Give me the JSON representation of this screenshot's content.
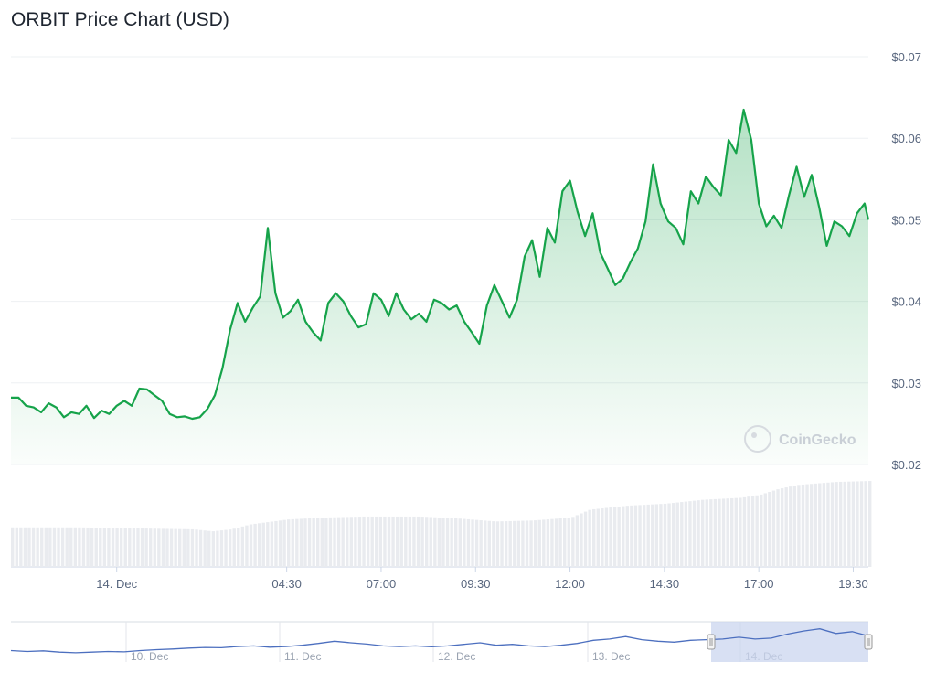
{
  "title": "ORBIT Price Chart (USD)",
  "watermark": "CoinGecko",
  "colors": {
    "line": "#16a34a",
    "area_top": "#16a34a",
    "grid": "#eef0f3",
    "volume": "#e9ebef",
    "navigator_line": "#4c6fbf",
    "navigator_mask": "#cbd5ef"
  },
  "chart_data": {
    "type": "line",
    "ylim": [
      0.02,
      0.07
    ],
    "yticks": [
      {
        "value": 0.07,
        "label": "$0.07"
      },
      {
        "value": 0.06,
        "label": "$0.06"
      },
      {
        "value": 0.05,
        "label": "$0.05"
      },
      {
        "value": 0.04,
        "label": "$0.04"
      },
      {
        "value": 0.03,
        "label": "$0.03"
      },
      {
        "value": 0.02,
        "label": "$0.02"
      }
    ],
    "xlim": [
      -2.8,
      19.9
    ],
    "xticks": [
      {
        "hour": 0,
        "label": "14. Dec"
      },
      {
        "hour": 4.5,
        "label": "04:30"
      },
      {
        "hour": 7,
        "label": "07:00"
      },
      {
        "hour": 9.5,
        "label": "09:30"
      },
      {
        "hour": 12,
        "label": "12:00"
      },
      {
        "hour": 14.5,
        "label": "14:30"
      },
      {
        "hour": 17,
        "label": "17:00"
      },
      {
        "hour": 19.5,
        "label": "19:30"
      }
    ],
    "grid": true,
    "series": [
      {
        "kind": "price",
        "points": [
          [
            -2.8,
            0.0282
          ],
          [
            -2.6,
            0.0282
          ],
          [
            -2.4,
            0.0272
          ],
          [
            -2.2,
            0.027
          ],
          [
            -2.0,
            0.0264
          ],
          [
            -1.8,
            0.0275
          ],
          [
            -1.6,
            0.027
          ],
          [
            -1.4,
            0.0258
          ],
          [
            -1.2,
            0.0264
          ],
          [
            -1.0,
            0.0262
          ],
          [
            -0.8,
            0.0272
          ],
          [
            -0.6,
            0.0257
          ],
          [
            -0.4,
            0.0266
          ],
          [
            -0.2,
            0.0262
          ],
          [
            0.0,
            0.0272
          ],
          [
            0.2,
            0.0278
          ],
          [
            0.4,
            0.0272
          ],
          [
            0.6,
            0.0293
          ],
          [
            0.8,
            0.0292
          ],
          [
            1.0,
            0.0285
          ],
          [
            1.2,
            0.0278
          ],
          [
            1.4,
            0.0262
          ],
          [
            1.6,
            0.0258
          ],
          [
            1.8,
            0.0259
          ],
          [
            2.0,
            0.0256
          ],
          [
            2.2,
            0.0258
          ],
          [
            2.4,
            0.0268
          ],
          [
            2.6,
            0.0285
          ],
          [
            2.8,
            0.0318
          ],
          [
            3.0,
            0.0365
          ],
          [
            3.2,
            0.0398
          ],
          [
            3.4,
            0.0375
          ],
          [
            3.6,
            0.0392
          ],
          [
            3.8,
            0.0406
          ],
          [
            4.0,
            0.049
          ],
          [
            4.2,
            0.041
          ],
          [
            4.4,
            0.038
          ],
          [
            4.6,
            0.0388
          ],
          [
            4.8,
            0.0402
          ],
          [
            5.0,
            0.0375
          ],
          [
            5.2,
            0.0362
          ],
          [
            5.4,
            0.0352
          ],
          [
            5.6,
            0.0398
          ],
          [
            5.8,
            0.041
          ],
          [
            6.0,
            0.04
          ],
          [
            6.2,
            0.0382
          ],
          [
            6.4,
            0.0368
          ],
          [
            6.6,
            0.0372
          ],
          [
            6.8,
            0.041
          ],
          [
            7.0,
            0.0402
          ],
          [
            7.2,
            0.0382
          ],
          [
            7.4,
            0.041
          ],
          [
            7.6,
            0.039
          ],
          [
            7.8,
            0.0378
          ],
          [
            8.0,
            0.0385
          ],
          [
            8.2,
            0.0375
          ],
          [
            8.4,
            0.0402
          ],
          [
            8.6,
            0.0398
          ],
          [
            8.8,
            0.039
          ],
          [
            9.0,
            0.0395
          ],
          [
            9.2,
            0.0375
          ],
          [
            9.4,
            0.0362
          ],
          [
            9.6,
            0.0348
          ],
          [
            9.8,
            0.0395
          ],
          [
            10.0,
            0.042
          ],
          [
            10.2,
            0.04
          ],
          [
            10.4,
            0.038
          ],
          [
            10.6,
            0.0402
          ],
          [
            10.8,
            0.0455
          ],
          [
            11.0,
            0.0475
          ],
          [
            11.2,
            0.043
          ],
          [
            11.4,
            0.049
          ],
          [
            11.6,
            0.0472
          ],
          [
            11.8,
            0.0535
          ],
          [
            12.0,
            0.0548
          ],
          [
            12.2,
            0.051
          ],
          [
            12.4,
            0.048
          ],
          [
            12.6,
            0.0508
          ],
          [
            12.8,
            0.046
          ],
          [
            13.0,
            0.044
          ],
          [
            13.2,
            0.042
          ],
          [
            13.4,
            0.0428
          ],
          [
            13.6,
            0.0448
          ],
          [
            13.8,
            0.0465
          ],
          [
            14.0,
            0.0498
          ],
          [
            14.2,
            0.0568
          ],
          [
            14.4,
            0.052
          ],
          [
            14.6,
            0.0498
          ],
          [
            14.8,
            0.049
          ],
          [
            15.0,
            0.047
          ],
          [
            15.2,
            0.0535
          ],
          [
            15.4,
            0.052
          ],
          [
            15.6,
            0.0553
          ],
          [
            15.8,
            0.054
          ],
          [
            16.0,
            0.053
          ],
          [
            16.2,
            0.0598
          ],
          [
            16.4,
            0.0582
          ],
          [
            16.6,
            0.0635
          ],
          [
            16.8,
            0.0598
          ],
          [
            17.0,
            0.052
          ],
          [
            17.2,
            0.0492
          ],
          [
            17.4,
            0.0505
          ],
          [
            17.6,
            0.049
          ],
          [
            17.8,
            0.053
          ],
          [
            18.0,
            0.0565
          ],
          [
            18.2,
            0.0528
          ],
          [
            18.4,
            0.0555
          ],
          [
            18.6,
            0.0515
          ],
          [
            18.8,
            0.0468
          ],
          [
            19.0,
            0.0498
          ],
          [
            19.2,
            0.0492
          ],
          [
            19.4,
            0.048
          ],
          [
            19.6,
            0.0508
          ],
          [
            19.8,
            0.052
          ],
          [
            19.9,
            0.05
          ]
        ]
      },
      {
        "kind": "volume",
        "values": [
          [
            -2.8,
            0.4
          ],
          [
            -1.0,
            0.4
          ],
          [
            0.5,
            0.39
          ],
          [
            2.0,
            0.38
          ],
          [
            2.5,
            0.36
          ],
          [
            3.0,
            0.38
          ],
          [
            3.5,
            0.43
          ],
          [
            4.5,
            0.48
          ],
          [
            5.5,
            0.5
          ],
          [
            6.5,
            0.51
          ],
          [
            8.0,
            0.51
          ],
          [
            9.0,
            0.49
          ],
          [
            10.0,
            0.46
          ],
          [
            11.0,
            0.47
          ],
          [
            12.0,
            0.5
          ],
          [
            12.5,
            0.58
          ],
          [
            13.5,
            0.62
          ],
          [
            14.5,
            0.64
          ],
          [
            15.5,
            0.68
          ],
          [
            16.5,
            0.7
          ],
          [
            17.0,
            0.73
          ],
          [
            17.5,
            0.79
          ],
          [
            18.0,
            0.83
          ],
          [
            19.0,
            0.86
          ],
          [
            19.9,
            0.87
          ]
        ]
      }
    ],
    "navigator": {
      "labels": [
        "10. Dec",
        "11. Dec",
        "12. Dec",
        "13. Dec",
        "14. Dec"
      ],
      "values": [
        0.25,
        0.22,
        0.24,
        0.2,
        0.18,
        0.2,
        0.22,
        0.21,
        0.25,
        0.28,
        0.3,
        0.33,
        0.35,
        0.34,
        0.38,
        0.4,
        0.36,
        0.38,
        0.42,
        0.48,
        0.55,
        0.5,
        0.46,
        0.4,
        0.38,
        0.4,
        0.37,
        0.4,
        0.45,
        0.5,
        0.42,
        0.45,
        0.4,
        0.38,
        0.42,
        0.48,
        0.58,
        0.62,
        0.7,
        0.6,
        0.55,
        0.52,
        0.58,
        0.6,
        0.62,
        0.68,
        0.62,
        0.65,
        0.78,
        0.88,
        0.95,
        0.8,
        0.86,
        0.72
      ]
    }
  }
}
